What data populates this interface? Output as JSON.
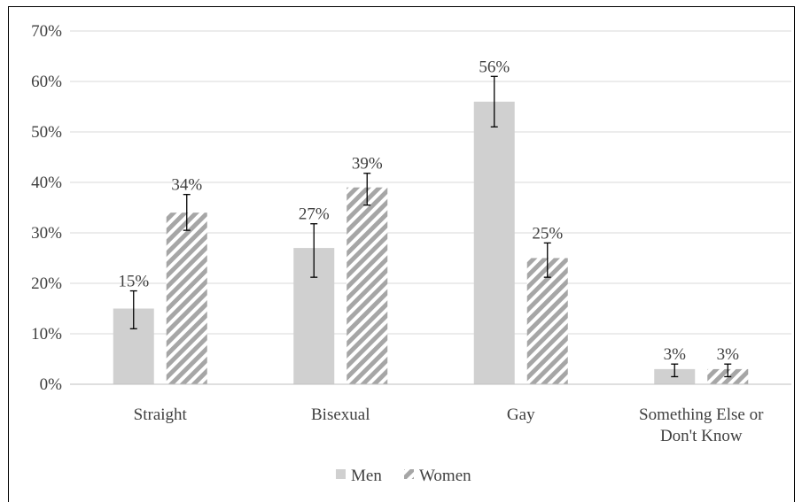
{
  "chart_data": {
    "type": "bar",
    "categories": [
      "Straight",
      "Bisexual",
      "Gay",
      "Something Else or Don't Know"
    ],
    "category_lines": [
      [
        "Straight"
      ],
      [
        "Bisexual"
      ],
      [
        "Gay"
      ],
      [
        "Something Else or",
        "Don't Know"
      ]
    ],
    "series": [
      {
        "name": "Men",
        "values": [
          15,
          27,
          56,
          3
        ],
        "labels": [
          "15%",
          "27%",
          "56%",
          "3%"
        ],
        "error_low": [
          11,
          21.2,
          51,
          1.5
        ],
        "error_high": [
          18.5,
          31.8,
          61,
          4
        ],
        "color": "#d0d0d0",
        "pattern": "solid"
      },
      {
        "name": "Women",
        "values": [
          34,
          39,
          25,
          3
        ],
        "labels": [
          "34%",
          "39%",
          "25%",
          "3%"
        ],
        "error_low": [
          30.5,
          35.5,
          21.2,
          1.5
        ],
        "error_high": [
          37.6,
          41.8,
          28,
          4
        ],
        "color": "#a6a6a6",
        "pattern": "diagonal-stripes"
      }
    ],
    "yticks": [
      "0%",
      "10%",
      "20%",
      "30%",
      "40%",
      "50%",
      "60%",
      "70%"
    ],
    "ylim": [
      0,
      70
    ],
    "grid": true,
    "legend_position": "bottom"
  }
}
